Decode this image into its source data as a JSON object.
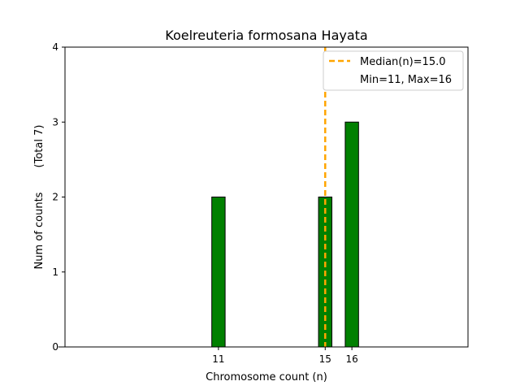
{
  "chart_data": {
    "type": "bar",
    "title": "Koelreuteria formosana Hayata",
    "xlabel": "Chromosome count (n)",
    "ylabel": "Num of counts",
    "ylabel_total": "(Total 7)",
    "x": [
      11,
      15,
      16
    ],
    "values": [
      2,
      2,
      3
    ],
    "xticks": [
      "11",
      "15",
      "16"
    ],
    "yticks": [
      "0",
      "1",
      "2",
      "3",
      "4"
    ],
    "ylim": [
      0,
      4
    ],
    "bar_color": "#008000",
    "bar_edge_color": "#000000",
    "median_value": 15.0,
    "median_color": "#FFA500",
    "legend": {
      "placement": "top-right",
      "median_label": "Median(n)=15.0",
      "minmax_label": "Min=11, Max=16"
    }
  }
}
